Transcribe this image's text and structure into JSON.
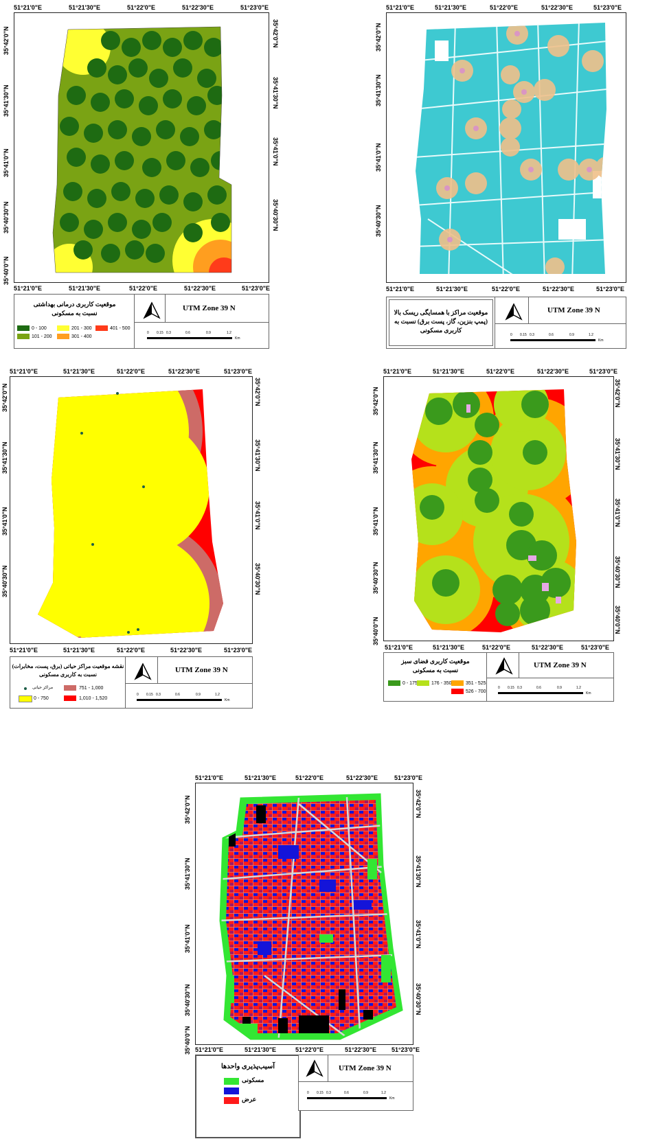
{
  "ticks": {
    "lon_top": [
      "51°21'0\"E",
      "51°21'30\"E",
      "51°22'0\"E",
      "51°22'30\"E",
      "51°23'0\"E"
    ],
    "lat": [
      "35°42'0\"N",
      "35°41'30\"N",
      "35°41'0\"N",
      "35°40'30\"N",
      "35°40'0\"N"
    ]
  },
  "common": {
    "utm": "UTM Zone 39 N",
    "scale_labels": [
      "0",
      "0.15",
      "0.3",
      "0.6",
      "0.9",
      "1.2"
    ],
    "scale_unit": "Km"
  },
  "maps": {
    "health": {
      "legend_title_1": "موقعیت کاربری درمانی بهداشتی",
      "legend_title_2": "نسبت به مسکونی",
      "classes": [
        {
          "label": "0 - 100",
          "color": "#1e6b12"
        },
        {
          "label": "101 - 200",
          "color": "#7aa314"
        },
        {
          "label": "201 - 300",
          "color": "#ffff33"
        },
        {
          "label": "301 - 400",
          "color": "#ff9e1f"
        },
        {
          "label": "401 - 500",
          "color": "#ff3b1a"
        }
      ]
    },
    "risk": {
      "legend_title_1": "موقعیت مراکز با همسایگی ریسک بالا",
      "legend_title_2": "(پمپ بنزین، گاز، پست برق) نسبت به",
      "legend_title_3": "کاربری مسکونی",
      "color_base": "#3ec9d1",
      "color_hot": "#f0c08a"
    },
    "vital": {
      "legend_title_1": "نقشه موقعیت مراکز حیاتی (برق، پست، مخابرات)",
      "legend_title_2": "نسبت به کاربری مسکونی",
      "point_label": "مراکز حیاتی",
      "classes": [
        {
          "label": "0 - 750",
          "color": "#ffff00"
        },
        {
          "label": "751 - 1,000",
          "color": "#cd6b67"
        },
        {
          "label": "1,010 - 1,520",
          "color": "#ff0000"
        }
      ]
    },
    "green": {
      "legend_title_1": "موقعیت کاربری فضای سبز",
      "legend_title_2": "نسبت به مسکونی",
      "classes": [
        {
          "label": "0 - 175",
          "color": "#3a9a1c"
        },
        {
          "label": "176 - 350",
          "color": "#b5e11b"
        },
        {
          "label": "351 - 525",
          "color": "#ffa500"
        },
        {
          "label": "526 - 700",
          "color": "#ff0000"
        }
      ]
    },
    "vulnerability": {
      "legend_title": "آسیب‌پذیری واحدها",
      "classes": [
        {
          "label": "مسکونی",
          "color": "#33e633"
        },
        {
          "label": "",
          "color": "#1414d9"
        },
        {
          "label": "عرض",
          "color": "#ff1a1a"
        }
      ]
    }
  }
}
